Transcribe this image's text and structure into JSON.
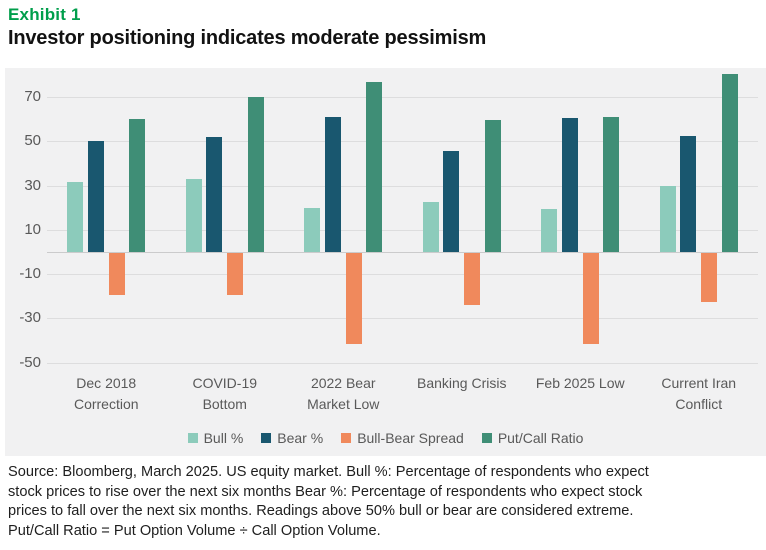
{
  "header": {
    "exhibit_label": "Exhibit 1",
    "title": "Investor positioning indicates moderate pessimism"
  },
  "colors": {
    "accent_green": "#009E4B",
    "panel_bg": "#F1F1F2",
    "gridline": "#DDDDDE",
    "zero_line": "#CBCBCC",
    "axis_text": "#595959",
    "bull": "#8CCBBB",
    "bear": "#19576F",
    "spread": "#F0895C",
    "putcall": "#3F8E76"
  },
  "chart_data": {
    "type": "bar",
    "title": "Investor positioning indicates moderate pessimism",
    "categories": [
      "Dec 2018 Correction",
      "COVID-19 Bottom",
      "2022 Bear Market Low",
      "Banking Crisis",
      "Feb 2025 Low",
      "Current Iran Conflict"
    ],
    "series": [
      {
        "name": "Bull %",
        "color": "#8CCBBB",
        "values": [
          31.5,
          33,
          20,
          22.5,
          19.4,
          30
        ]
      },
      {
        "name": "Bear %",
        "color": "#19576F",
        "values": [
          50.3,
          52,
          61,
          45.8,
          60.6,
          52.3
        ]
      },
      {
        "name": "Bull-Bear Spread",
        "color": "#F0895C",
        "values": [
          -18.8,
          -19,
          -41,
          -23.3,
          -41.2,
          -22.3
        ]
      },
      {
        "name": "Put/Call Ratio",
        "color": "#3F8E76",
        "values": [
          60,
          70,
          77,
          59.5,
          61,
          80.5
        ]
      }
    ],
    "xlabel": "",
    "ylabel": "",
    "yticks": [
      70,
      50,
      30,
      10,
      -10,
      -30,
      -50
    ],
    "ylim": [
      -52,
      83
    ],
    "grid": true,
    "legend_position": "bottom"
  },
  "footer": {
    "lines": [
      "Source: Bloomberg, March 2025. US equity market. Bull %: Percentage of respondents who expect",
      "stock prices to rise over the next six months Bear %: Percentage of respondents who expect stock",
      "prices to fall over the next six months. Readings above 50% bull or bear are considered extreme.",
      "Put/Call Ratio = Put Option Volume ÷ Call Option Volume."
    ]
  }
}
